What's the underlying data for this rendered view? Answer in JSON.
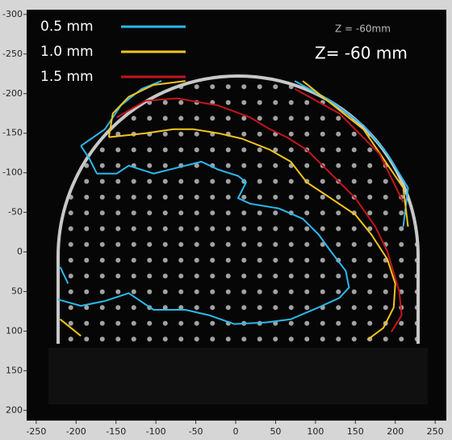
{
  "chart_data": {
    "type": "contour",
    "annotations": [
      "Z = -60mm",
      "Z= -60 mm"
    ],
    "xlim": [
      -262,
      264
    ],
    "ylim": [
      213,
      -306
    ],
    "xticks": [
      -250,
      -200,
      -150,
      -100,
      -50,
      0,
      50,
      100,
      150,
      200,
      250
    ],
    "yticks": [
      -300,
      -250,
      -200,
      -150,
      -100,
      -50,
      0,
      50,
      100,
      150,
      200
    ],
    "series": [
      {
        "name": "0.5 mm",
        "color": "#2cb8ea",
        "x": [
          -223,
          -194,
          -164,
          -134,
          -103,
          -63,
          -33,
          -2,
          38,
          69,
          104,
          130,
          142,
          138,
          119,
          104,
          84,
          54,
          18,
          3,
          13,
          3,
          -22,
          -43,
          -83,
          -103,
          -134,
          -149,
          -174,
          -184,
          -194,
          null,
          -194,
          -164,
          -144,
          -118,
          -93,
          null,
          74,
          119,
          160,
          190,
          216,
          210,
          null,
          -220,
          -210
        ],
        "y": [
          60,
          68,
          62,
          52,
          73,
          73,
          80,
          91,
          89,
          85,
          70,
          58,
          45,
          24,
          -1,
          -22,
          -42,
          -55,
          -61,
          -68,
          -88,
          -96,
          -104,
          -114,
          -104,
          -99,
          -109,
          -99,
          -99,
          -119,
          -134,
          null,
          -134,
          -155,
          -185,
          -206,
          -216,
          null,
          -216,
          -191,
          -160,
          -124,
          -81,
          -32,
          null,
          19,
          40
        ]
      },
      {
        "name": "1.0 mm",
        "color": "#f2c51c",
        "x": [
          -159,
          -113,
          -78,
          -53,
          -22,
          8,
          43,
          69,
          89,
          119,
          150,
          170,
          190,
          200,
          198,
          185,
          165,
          null,
          -159,
          -154,
          -134,
          -103,
          -63,
          null,
          84,
          160,
          210,
          216,
          null,
          -220,
          -194
        ],
        "y": [
          -145,
          -150,
          -155,
          -155,
          -150,
          -143,
          -129,
          -114,
          -88,
          -68,
          -47,
          -22,
          9,
          40,
          70,
          96,
          111,
          null,
          -145,
          -175,
          -196,
          -211,
          -216,
          null,
          -216,
          -155,
          -81,
          -32,
          null,
          85,
          106
        ]
      },
      {
        "name": "1.5 mm",
        "color": "#c4161c",
        "x": [
          -149,
          -113,
          -73,
          -22,
          18,
          43,
          64,
          89,
          119,
          150,
          175,
          190,
          205,
          208,
          195,
          null,
          74,
          130,
          180,
          210
        ],
        "y": [
          -170,
          -191,
          -194,
          -185,
          -170,
          -155,
          -145,
          -129,
          -99,
          -68,
          -32,
          -1,
          50,
          80,
          101,
          null,
          -206,
          -175,
          -124,
          -63
        ]
      }
    ]
  }
}
